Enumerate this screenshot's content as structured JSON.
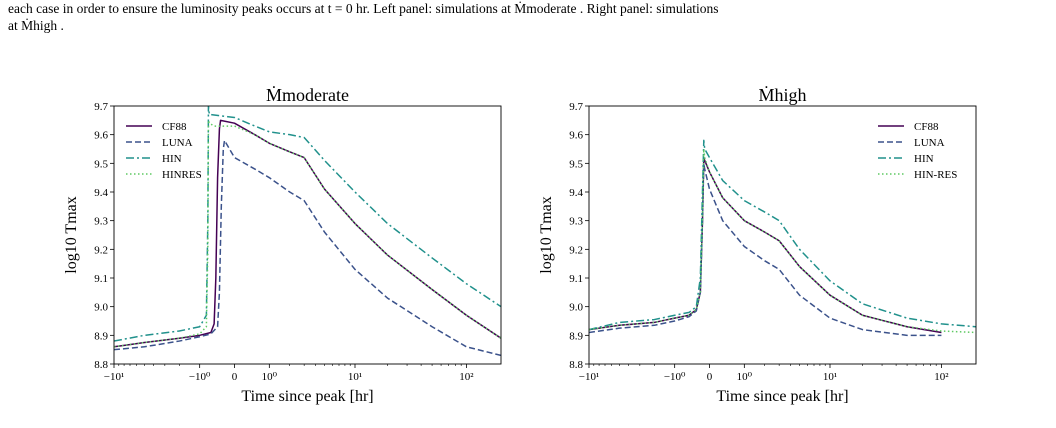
{
  "caption": {
    "line1": "each case in order to ensure the luminosity peaks occurs at t = 0 hr. Left panel: simulations at Ṁmoderate . Right panel: simulations",
    "line2": "at Ṁhigh ."
  },
  "chart_data": [
    {
      "type": "line",
      "title": "Ṁmoderate",
      "xlabel": "Time since peak [hr]",
      "ylabel": "log10 Tmax",
      "x_scale": "symlog",
      "xlim": [
        -10,
        200
      ],
      "ylim": [
        8.8,
        9.7
      ],
      "x_ticks": [
        {
          "value": -10,
          "label": "−10¹"
        },
        {
          "value": -1,
          "label": "−10⁰"
        },
        {
          "value": 0,
          "label": "0"
        },
        {
          "value": 1,
          "label": "10⁰"
        },
        {
          "value": 10,
          "label": "10¹"
        },
        {
          "value": 100,
          "label": "10²"
        }
      ],
      "y_ticks": [
        "8.8",
        "8.9",
        "9.0",
        "9.1",
        "9.2",
        "9.3",
        "9.4",
        "9.5",
        "9.6",
        "9.7"
      ],
      "grid": false,
      "legend_position": "top-left",
      "series": [
        {
          "name": "CF88",
          "color": "#440154",
          "dash": "solid",
          "x": [
            -10,
            -5,
            -2,
            -1,
            -0.6,
            -0.5,
            -0.45,
            -0.4,
            -0.35,
            -0.32,
            0,
            0.5,
            1,
            2,
            3,
            5,
            10,
            20,
            50,
            100,
            200
          ],
          "y": [
            8.86,
            8.875,
            8.89,
            8.9,
            8.91,
            8.94,
            9.1,
            9.45,
            9.62,
            9.65,
            9.64,
            9.6,
            9.57,
            9.54,
            9.52,
            9.41,
            9.29,
            9.18,
            9.06,
            8.97,
            8.89
          ]
        },
        {
          "name": "LUNA",
          "color": "#3b528b",
          "dash": "dashed",
          "x": [
            -10,
            -5,
            -2,
            -1,
            -0.6,
            -0.4,
            -0.35,
            -0.3,
            -0.25,
            -0.22,
            0,
            0.5,
            1,
            2,
            3,
            5,
            10,
            20,
            50,
            100,
            200
          ],
          "y": [
            8.85,
            8.86,
            8.88,
            8.895,
            8.905,
            8.93,
            9.05,
            9.35,
            9.55,
            9.58,
            9.52,
            9.48,
            9.45,
            9.4,
            9.37,
            9.26,
            9.13,
            9.03,
            8.93,
            8.86,
            8.83
          ]
        },
        {
          "name": "HIN",
          "color": "#21918c",
          "dash": "dashdot",
          "x": [
            -10,
            -5,
            -2,
            -1,
            -0.75,
            -0.7,
            -0.68,
            -0.65,
            -0.6,
            0,
            0.5,
            1,
            2,
            3,
            5,
            10,
            20,
            50,
            100,
            200
          ],
          "y": [
            8.88,
            8.9,
            8.915,
            8.93,
            8.97,
            9.3,
            9.7,
            9.67,
            9.67,
            9.66,
            9.63,
            9.61,
            9.6,
            9.59,
            9.51,
            9.4,
            9.29,
            9.17,
            9.08,
            9.0
          ]
        },
        {
          "name": "HINRES",
          "color": "#5ec962",
          "dash": "dotted",
          "x": [
            -10,
            -5,
            -2,
            -1,
            -0.75,
            -0.7,
            -0.68,
            -0.65,
            -0.5,
            0,
            0.5,
            1,
            2,
            3,
            5,
            10,
            20,
            50,
            100,
            200
          ],
          "y": [
            8.86,
            8.875,
            8.89,
            8.905,
            8.93,
            9.2,
            9.65,
            9.64,
            9.63,
            9.63,
            9.6,
            9.57,
            9.54,
            9.52,
            9.41,
            9.29,
            9.18,
            9.06,
            8.97,
            8.89
          ]
        }
      ]
    },
    {
      "type": "line",
      "title": "Ṁhigh",
      "xlabel": "Time since peak [hr]",
      "ylabel": "log10 Tmax",
      "x_scale": "symlog",
      "xlim": [
        -10,
        200
      ],
      "ylim": [
        8.8,
        9.7
      ],
      "x_ticks": [
        {
          "value": -10,
          "label": "−10¹"
        },
        {
          "value": -1,
          "label": "−10⁰"
        },
        {
          "value": 0,
          "label": "0"
        },
        {
          "value": 1,
          "label": "10⁰"
        },
        {
          "value": 10,
          "label": "10¹"
        },
        {
          "value": 100,
          "label": "10²"
        }
      ],
      "y_ticks": [
        "8.8",
        "8.9",
        "9.0",
        "9.1",
        "9.2",
        "9.3",
        "9.4",
        "9.5",
        "9.6",
        "9.7"
      ],
      "grid": false,
      "legend_position": "top-right",
      "series": [
        {
          "name": "CF88",
          "color": "#440154",
          "dash": "solid",
          "x": [
            -10,
            -5,
            -2,
            -1,
            -0.5,
            -0.3,
            -0.2,
            -0.15,
            -0.12,
            -0.1,
            0,
            0.3,
            1,
            2,
            3,
            5,
            10,
            20,
            50,
            100
          ],
          "y": [
            8.92,
            8.935,
            8.945,
            8.96,
            8.97,
            8.99,
            9.05,
            9.3,
            9.52,
            9.51,
            9.47,
            9.38,
            9.3,
            9.26,
            9.23,
            9.14,
            9.04,
            8.97,
            8.93,
            8.91
          ]
        },
        {
          "name": "LUNA",
          "color": "#3b528b",
          "dash": "dashed",
          "x": [
            -10,
            -5,
            -2,
            -1,
            -0.5,
            -0.3,
            -0.2,
            -0.15,
            -0.12,
            -0.1,
            0,
            0.3,
            1,
            2,
            3,
            5,
            10,
            20,
            50,
            100
          ],
          "y": [
            8.91,
            8.925,
            8.935,
            8.95,
            8.965,
            8.985,
            9.05,
            9.3,
            9.5,
            9.48,
            9.41,
            9.3,
            9.21,
            9.16,
            9.13,
            9.04,
            8.96,
            8.92,
            8.9,
            8.9
          ]
        },
        {
          "name": "HIN",
          "color": "#21918c",
          "dash": "dashdot",
          "x": [
            -10,
            -5,
            -2,
            -1,
            -0.5,
            -0.3,
            -0.2,
            -0.15,
            -0.12,
            -0.1,
            0,
            0.3,
            1,
            2,
            3,
            5,
            10,
            20,
            50,
            100,
            200
          ],
          "y": [
            8.92,
            8.945,
            8.955,
            8.97,
            8.98,
            9.0,
            9.1,
            9.4,
            9.58,
            9.55,
            9.52,
            9.44,
            9.37,
            9.33,
            9.3,
            9.2,
            9.09,
            9.01,
            8.96,
            8.94,
            8.93
          ]
        },
        {
          "name": "HIN-RES",
          "color": "#5ec962",
          "dash": "dotted",
          "x": [
            -10,
            -5,
            -2,
            -1,
            -0.5,
            -0.3,
            -0.2,
            -0.15,
            -0.12,
            -0.1,
            0,
            0.3,
            1,
            2,
            3,
            5,
            10,
            20,
            50,
            100,
            200
          ],
          "y": [
            8.92,
            8.935,
            8.945,
            8.96,
            8.97,
            8.99,
            9.05,
            9.3,
            9.55,
            9.52,
            9.47,
            9.38,
            9.3,
            9.26,
            9.23,
            9.14,
            9.04,
            8.97,
            8.93,
            8.915,
            8.91
          ]
        }
      ]
    }
  ]
}
